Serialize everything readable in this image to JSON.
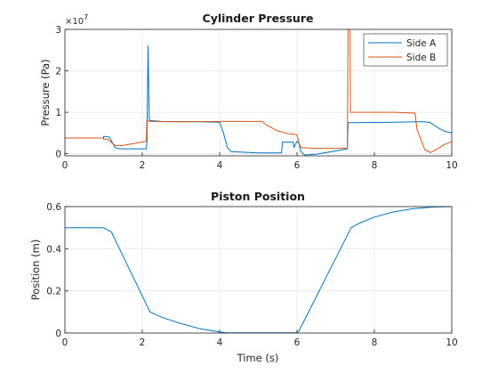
{
  "chart_data": [
    {
      "type": "line",
      "title": "Cylinder Pressure",
      "xlabel": "",
      "ylabel": "Pressure (Pa)",
      "xlim": [
        0,
        10
      ],
      "ylim": [
        -0.05,
        3.0
      ],
      "y_multiplier_label": "×10",
      "y_multiplier_exponent": "7",
      "x_ticks": [
        0,
        2,
        4,
        6,
        8,
        10
      ],
      "y_ticks": [
        0,
        1,
        2,
        3
      ],
      "grid": true,
      "legend_position": "top-right",
      "series": [
        {
          "name": "Side A",
          "color": "#0072BD",
          "points": [
            [
              0,
              0.38
            ],
            [
              1.0,
              0.38
            ],
            [
              1.0,
              0.42
            ],
            [
              1.15,
              0.4
            ],
            [
              1.3,
              0.15
            ],
            [
              1.4,
              0.12
            ],
            [
              2.1,
              0.12
            ],
            [
              2.12,
              0.26
            ],
            [
              2.15,
              2.6
            ],
            [
              2.18,
              0.85
            ],
            [
              2.2,
              0.8
            ],
            [
              2.5,
              0.78
            ],
            [
              3.5,
              0.77
            ],
            [
              4.0,
              0.76
            ],
            [
              4.1,
              0.5
            ],
            [
              4.2,
              0.15
            ],
            [
              4.3,
              0.05
            ],
            [
              5.0,
              0.02
            ],
            [
              5.6,
              0.02
            ],
            [
              5.62,
              0.28
            ],
            [
              5.9,
              0.28
            ],
            [
              5.92,
              0.15
            ],
            [
              6.0,
              0.3
            ],
            [
              6.05,
              0.25
            ],
            [
              6.1,
              0.05
            ],
            [
              6.2,
              -0.03
            ],
            [
              6.5,
              -0.01
            ],
            [
              6.9,
              0.05
            ],
            [
              7.3,
              0.12
            ],
            [
              7.32,
              0.75
            ],
            [
              7.5,
              0.75
            ],
            [
              8.5,
              0.76
            ],
            [
              9.1,
              0.77
            ],
            [
              9.3,
              0.77
            ],
            [
              9.45,
              0.75
            ],
            [
              9.6,
              0.65
            ],
            [
              9.8,
              0.55
            ],
            [
              10.0,
              0.5
            ]
          ]
        },
        {
          "name": "Side B",
          "color": "#D95319",
          "points": [
            [
              0,
              0.38
            ],
            [
              1.0,
              0.38
            ],
            [
              1.0,
              0.35
            ],
            [
              1.1,
              0.35
            ],
            [
              1.3,
              0.2
            ],
            [
              1.5,
              0.2
            ],
            [
              1.8,
              0.25
            ],
            [
              2.1,
              0.3
            ],
            [
              2.12,
              0.8
            ],
            [
              2.2,
              0.78
            ],
            [
              3.0,
              0.77
            ],
            [
              4.0,
              0.78
            ],
            [
              5.1,
              0.78
            ],
            [
              5.2,
              0.7
            ],
            [
              5.5,
              0.55
            ],
            [
              5.8,
              0.48
            ],
            [
              6.0,
              0.46
            ],
            [
              6.05,
              0.25
            ],
            [
              6.1,
              0.15
            ],
            [
              6.5,
              0.13
            ],
            [
              7.0,
              0.13
            ],
            [
              7.3,
              0.14
            ],
            [
              7.32,
              3.0
            ],
            [
              7.37,
              3.0
            ],
            [
              7.38,
              1.0
            ],
            [
              7.5,
              1.0
            ],
            [
              8.5,
              1.0
            ],
            [
              9.05,
              0.98
            ],
            [
              9.1,
              0.6
            ],
            [
              9.3,
              0.1
            ],
            [
              9.45,
              0.03
            ],
            [
              9.6,
              0.1
            ],
            [
              9.8,
              0.22
            ],
            [
              10.0,
              0.29
            ]
          ]
        }
      ]
    },
    {
      "type": "line",
      "title": "Piston Position",
      "xlabel": "Time (s)",
      "ylabel": "Position (m)",
      "xlim": [
        0,
        10
      ],
      "ylim": [
        0,
        0.6
      ],
      "x_ticks": [
        0,
        2,
        4,
        6,
        8,
        10
      ],
      "y_ticks": [
        0,
        0.2,
        0.4,
        0.6
      ],
      "grid": true,
      "series": [
        {
          "color": "#0072BD",
          "points": [
            [
              0,
              0.5
            ],
            [
              1.0,
              0.5
            ],
            [
              1.2,
              0.48
            ],
            [
              2.2,
              0.1
            ],
            [
              2.5,
              0.075
            ],
            [
              3.0,
              0.045
            ],
            [
              3.5,
              0.02
            ],
            [
              4.0,
              0.005
            ],
            [
              4.2,
              0.001
            ],
            [
              6.0,
              0.001
            ],
            [
              6.05,
              0.01
            ],
            [
              7.4,
              0.5
            ],
            [
              7.6,
              0.52
            ],
            [
              8.0,
              0.55
            ],
            [
              8.5,
              0.575
            ],
            [
              9.0,
              0.59
            ],
            [
              9.5,
              0.598
            ],
            [
              10.0,
              0.6
            ]
          ]
        }
      ]
    }
  ]
}
